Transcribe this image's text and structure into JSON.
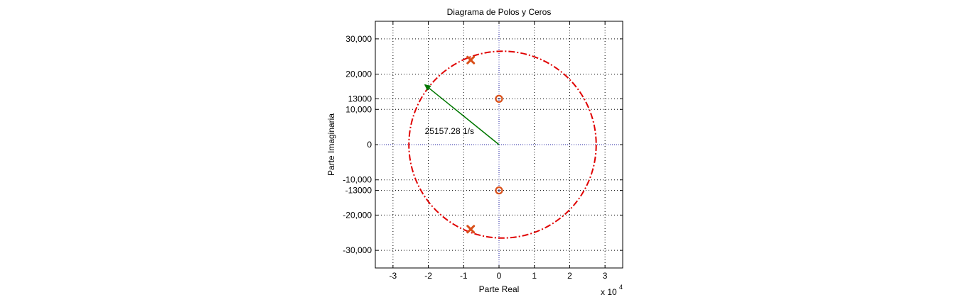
{
  "chart_data": {
    "type": "scatter",
    "title": "Diagrama de Polos y Ceros",
    "xlabel": "Parte Real",
    "ylabel": "Parte Imaginaria",
    "x_exponent_label": "x 10",
    "x_exponent_power": "4",
    "xlim": [
      -3.5,
      3.5
    ],
    "ylim": [
      -35000,
      35000
    ],
    "x_scale": 10000,
    "grid": true,
    "x_ticks": [
      {
        "value": -3,
        "label": "-3"
      },
      {
        "value": -2,
        "label": "-2"
      },
      {
        "value": -1,
        "label": "-1"
      },
      {
        "value": 0,
        "label": "0"
      },
      {
        "value": 1,
        "label": "1"
      },
      {
        "value": 2,
        "label": "2"
      },
      {
        "value": 3,
        "label": "3"
      }
    ],
    "y_ticks": [
      {
        "value": 30000,
        "label": "30,000"
      },
      {
        "value": 20000,
        "label": "20,000"
      },
      {
        "value": 13000,
        "label": "13000"
      },
      {
        "value": 10000,
        "label": "10,000"
      },
      {
        "value": 0,
        "label": "0"
      },
      {
        "value": -10000,
        "label": "-10,000"
      },
      {
        "value": -13000,
        "label": "-13000"
      },
      {
        "value": -20000,
        "label": "-20,000"
      },
      {
        "value": -30000,
        "label": "-30,000"
      }
    ],
    "poles": [
      {
        "x": -8000,
        "y": 24000
      },
      {
        "x": -8000,
        "y": -24000
      }
    ],
    "zeros": [
      {
        "x": 0,
        "y": 13000
      },
      {
        "x": 0,
        "y": -13000
      }
    ],
    "circle": {
      "center_x": 1000,
      "center_y": 0,
      "radius": 26500
    },
    "vector": {
      "from_x": 0,
      "from_y": 0,
      "to_x": -21000,
      "to_y": 17000
    },
    "annotation": {
      "text": "25157.28 1/s",
      "x": -21000,
      "y": 3000
    },
    "colors": {
      "circle": "#e00000",
      "pole": "#d9501a",
      "zero": "#d9501a",
      "vector": "#007700",
      "axis_guides": "#2020a0",
      "grid": "#000000"
    }
  }
}
